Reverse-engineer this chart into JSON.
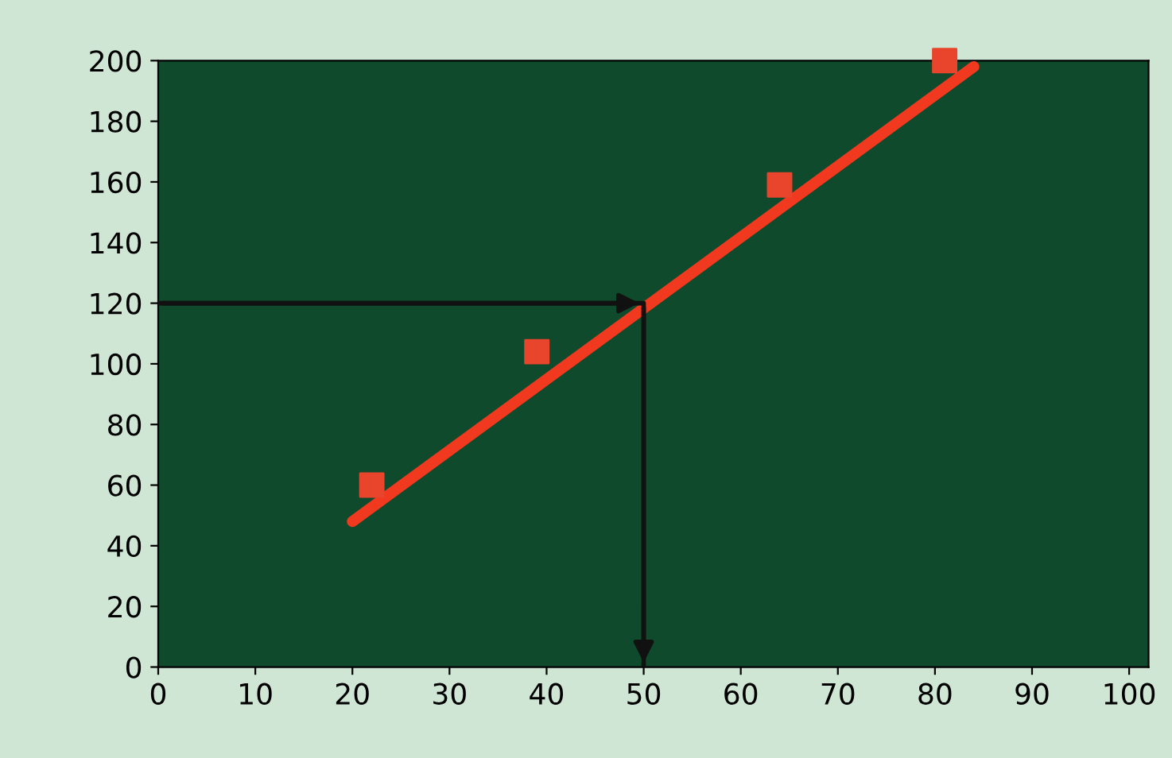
{
  "chart_data": {
    "type": "scatter",
    "xlim": [
      0,
      102
    ],
    "ylim": [
      0,
      200
    ],
    "xticks": [
      0,
      10,
      20,
      30,
      40,
      50,
      60,
      70,
      80,
      90,
      100
    ],
    "yticks": [
      0,
      20,
      40,
      60,
      80,
      100,
      120,
      140,
      160,
      180,
      200
    ],
    "grid": false,
    "series": [
      {
        "color": "#e8452c",
        "marker": "square",
        "x": [
          22,
          39,
          64,
          81
        ],
        "values": [
          60,
          104,
          159,
          200
        ]
      },
      {
        "type": "line",
        "marker": "none",
        "color": "#f0391e",
        "x": [
          20,
          84
        ],
        "values": [
          48,
          198
        ]
      },
      {
        "type": "line",
        "marker": "none",
        "color": "#111111",
        "x": [
          0,
          50,
          50
        ],
        "values": [
          120,
          120,
          0
        ]
      }
    ]
  }
}
